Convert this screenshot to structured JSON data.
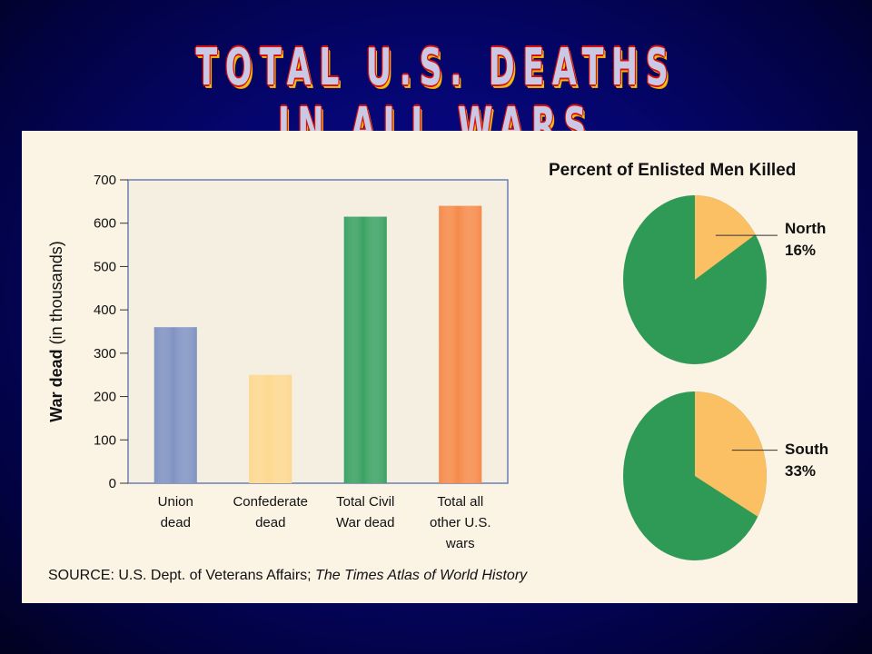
{
  "title": "TOTAL U.S. DEATHS IN ALL WARS",
  "colors": {
    "plot_bg": "#f5efe1",
    "pie_green": "#2f9a55",
    "pie_orange": "#fbc063",
    "bar_union": "#7f92c2",
    "bar_confederate": "#fdd88f",
    "bar_total_civil": "#3aa262",
    "bar_total_other": "#f68a4a"
  },
  "chart_data": [
    {
      "type": "bar",
      "title": "",
      "ylabel_bold": "War dead",
      "ylabel_rest": " (in thousands)",
      "ylim": [
        0,
        700
      ],
      "yticks": [
        0,
        100,
        200,
        300,
        400,
        500,
        600,
        700
      ],
      "grid": false,
      "categories": [
        [
          "Union",
          "dead"
        ],
        [
          "Confederate",
          "dead"
        ],
        [
          "Total Civil",
          "War dead"
        ],
        [
          "Total all",
          "other U.S.",
          "wars"
        ]
      ],
      "values": [
        360,
        250,
        615,
        640
      ]
    },
    {
      "type": "pie",
      "title": "Percent of Enlisted Men Killed",
      "pies": [
        {
          "label": "North",
          "value_label": "16%",
          "value": 16
        },
        {
          "label": "South",
          "value_label": "33%",
          "value": 33
        }
      ]
    }
  ],
  "source": {
    "prefix": "SOURCE: U.S. Dept. of Veterans Affairs; ",
    "italic": "The Times Atlas of World History"
  }
}
